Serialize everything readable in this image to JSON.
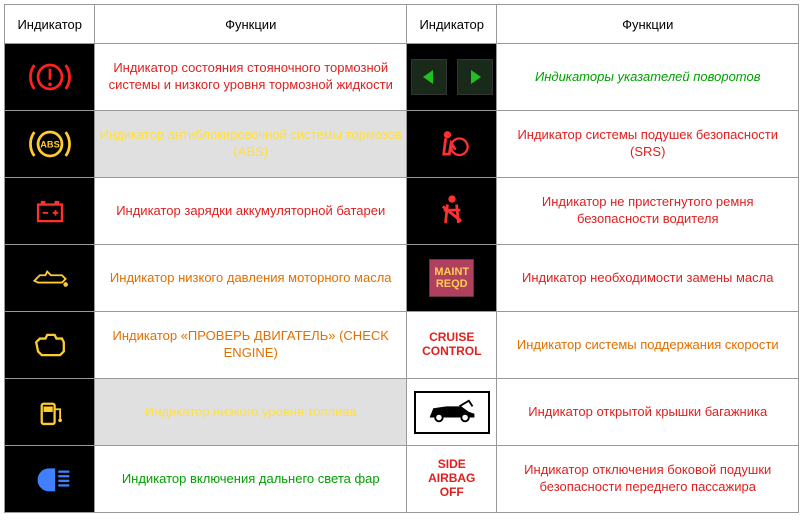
{
  "headers": {
    "col1": "Индикатор",
    "col2": "Функции",
    "col3": "Индикатор",
    "col4": "Функции"
  },
  "col_widths": {
    "c1": "90px",
    "c2": "310px",
    "c3": "90px",
    "c4": "300px"
  },
  "colors": {
    "red": "#e02020",
    "orange": "#e07000",
    "green": "#00a000",
    "yellow": "#ffe040",
    "header_text": "#000000",
    "border": "#999999",
    "shaded_bg": "#e0e0e0",
    "icon_bg_black": "#000000",
    "icon_bg_white": "#ffffff"
  },
  "rows": [
    {
      "left_icon": "brake-warning-icon",
      "left_text": "Индикатор состояния стояночного тормозной системы и низкого уровня тормозной жидкости",
      "left_color": "#e02020",
      "left_shaded": false,
      "right_icon": "turn-signals-icon",
      "right_icon_white": false,
      "right_text": "Индикаторы указателей поворотов",
      "right_color": "#00a000",
      "right_italic": true,
      "right_shaded": false
    },
    {
      "left_icon": "abs-icon",
      "left_text": "Индикатор антиблокировочной системы тормозов (ABS)",
      "left_color": "#ffe040",
      "left_shaded": true,
      "right_icon": "airbag-icon",
      "right_icon_white": false,
      "right_text": "Индикатор системы подушек безопасности (SRS)",
      "right_color": "#e02020",
      "right_shaded": false
    },
    {
      "left_icon": "battery-icon",
      "left_text": "Индикатор зарядки аккумуляторной батареи",
      "left_color": "#e02020",
      "left_shaded": false,
      "right_icon": "seatbelt-icon",
      "right_icon_white": false,
      "right_text": "Индикатор не пристегнутого ремня безопасности водителя",
      "right_color": "#e02020",
      "right_shaded": false
    },
    {
      "left_icon": "oil-pressure-icon",
      "left_text": "Индикатор низкого давления моторного масла",
      "left_color": "#e07000",
      "left_shaded": false,
      "right_icon": "maint-reqd-icon",
      "right_icon_white": false,
      "right_text": "Индикатор необходимости замены масла",
      "right_color": "#e02020",
      "right_shaded": false,
      "right_icon_text1": "MAINT",
      "right_icon_text2": "REQD"
    },
    {
      "left_icon": "check-engine-icon",
      "left_text": "Индикатор «ПРОВЕРЬ ДВИГАТЕЛЬ» (CHECK ENGINE)",
      "left_color": "#e07000",
      "left_shaded": false,
      "right_icon": "cruise-control-icon",
      "right_icon_white": true,
      "right_icon_text1": "CRUISE",
      "right_icon_text2": "CONTROL",
      "right_icon_text_color": "#e02020",
      "right_text": "Индикатор системы поддержания скорости",
      "right_color": "#e07000",
      "right_shaded": false
    },
    {
      "left_icon": "low-fuel-icon",
      "left_text": "Индикатор низкого уровня топлива",
      "left_color": "#ffe040",
      "left_shaded": true,
      "right_icon": "trunk-open-icon",
      "right_icon_white": true,
      "right_text": "Индикатор открытой крышки багажника",
      "right_color": "#e02020",
      "right_shaded": false
    },
    {
      "left_icon": "high-beam-icon",
      "left_text": "Индикатор включения дальнего света фар",
      "left_color": "#00a000",
      "left_shaded": false,
      "right_icon": "side-airbag-off-icon",
      "right_icon_white": true,
      "right_icon_text1": "SIDE",
      "right_icon_text2": "AIRBAG",
      "right_icon_text3": "OFF",
      "right_icon_text_color": "#e02020",
      "right_text": "Индикатор отключения боковой подушки безопасности переднего пассажира",
      "right_color": "#e02020",
      "right_shaded": false
    }
  ]
}
